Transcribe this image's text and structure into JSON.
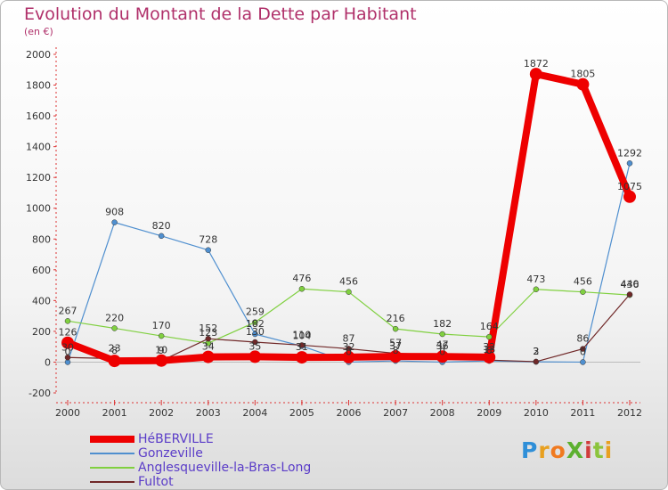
{
  "chart_data": {
    "type": "line",
    "title": "Evolution du Montant de la Dette par Habitant",
    "subtitle": "(en €)",
    "x": [
      "2000",
      "2001",
      "2002",
      "2003",
      "2004",
      "2005",
      "2006",
      "2007",
      "2008",
      "2009",
      "2010",
      "2011",
      "2012"
    ],
    "ylim": [
      -200,
      2000
    ],
    "yticks": [
      -200,
      0,
      200,
      400,
      600,
      800,
      1000,
      1200,
      1400,
      1600,
      1800,
      2000
    ],
    "grid": false,
    "legend_position": "bottom-left",
    "series": [
      {
        "name": "HéBERVILLE",
        "color": "#ee0000",
        "values": [
          126,
          8,
          10,
          34,
          35,
          31,
          32,
          37,
          36,
          32,
          1872,
          1805,
          1075
        ]
      },
      {
        "name": "Gonzeville",
        "color": "#4f8fcf",
        "values": [
          0,
          908,
          820,
          728,
          182,
          104,
          0,
          8,
          0,
          8,
          2,
          0,
          1292
        ]
      },
      {
        "name": "Anglesqueville-la-Bras-Long",
        "color": "#80d040",
        "values": [
          267,
          220,
          170,
          123,
          259,
          476,
          456,
          216,
          182,
          164,
          473,
          456,
          436
        ]
      },
      {
        "name": "Fultot",
        "color": "#702828",
        "values": [
          30,
          23,
          9,
          152,
          130,
          110,
          87,
          57,
          47,
          13,
          3,
          86,
          440
        ]
      }
    ],
    "data_labels": [
      [
        "126",
        "8",
        "10",
        "34",
        "35",
        "31",
        "32",
        "37",
        "36",
        "32",
        "1872",
        "1805",
        "1075"
      ],
      [
        "0",
        "908",
        "820",
        "728",
        "182",
        "104",
        "0",
        "8",
        "0",
        "8",
        "2",
        "0",
        "1292"
      ],
      [
        "267",
        "220",
        "170",
        "123",
        "259",
        "476",
        "456",
        "216",
        "182",
        "164",
        "473",
        "456",
        "436"
      ],
      [
        "30",
        "23",
        "9",
        "152",
        "130",
        "110",
        "87",
        "57",
        "47",
        "13",
        "3",
        "86",
        "440"
      ]
    ]
  },
  "logo": {
    "text": "ProXiti",
    "colors": [
      "#2f8fd8",
      "#e8a020",
      "#f07a20",
      "#5cb030",
      "#d03c3c",
      "#8cc43c",
      "#e8a020"
    ]
  }
}
